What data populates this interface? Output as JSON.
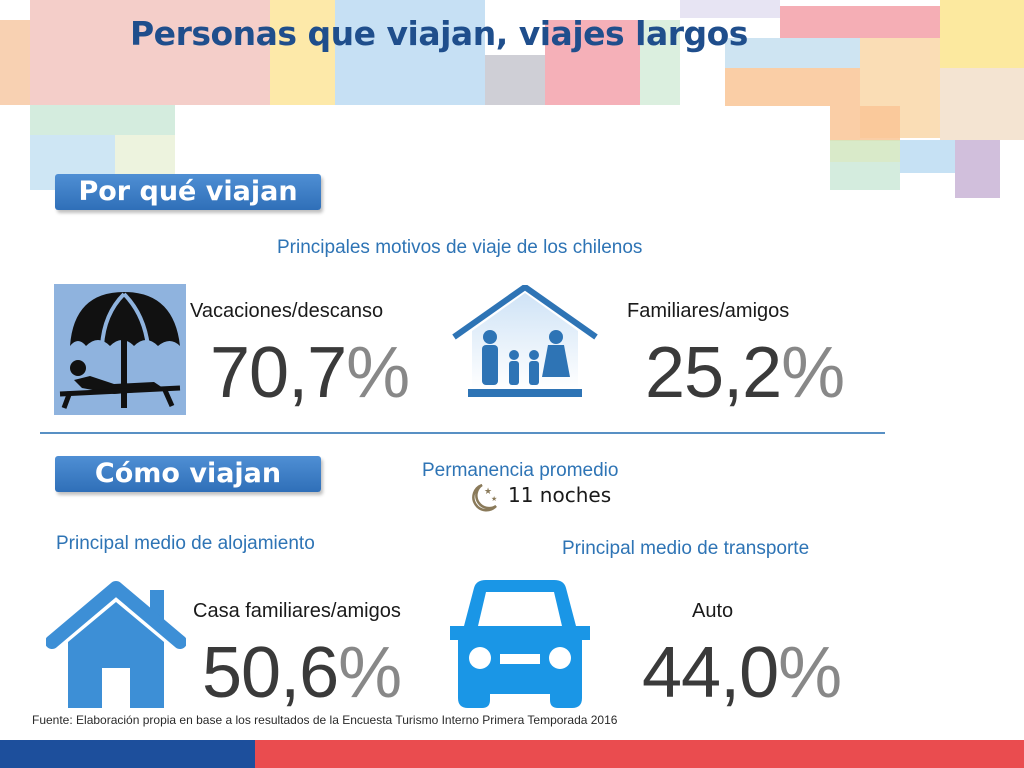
{
  "title": "Personas que viajan, viajes largos",
  "section_why": {
    "tab_label": "Por qué viajan",
    "subtitle": "Principales motivos de viaje de los chilenos",
    "items": [
      {
        "label": "Vacaciones/descanso",
        "value": "70,7",
        "unit": "%",
        "icon": "beach-umbrella-icon"
      },
      {
        "label": "Familiares/amigos",
        "value": "25,2",
        "unit": "%",
        "icon": "family-house-icon"
      }
    ]
  },
  "section_how": {
    "tab_label": "Cómo viajan",
    "stay": {
      "label": "Permanencia promedio",
      "value": "11 noches",
      "icon": "moon-stars-icon"
    },
    "lodging": {
      "title": "Principal medio de alojamiento",
      "label": "Casa familiares/amigos",
      "value": "50,6",
      "unit": "%",
      "icon": "house-icon"
    },
    "transport": {
      "title": "Principal medio de transporte",
      "label": "Auto",
      "value": "44,0",
      "unit": "%",
      "icon": "car-icon"
    }
  },
  "footer": "Fuente: Elaboración propia en base a los resultados de la Encuesta Turismo Interno Primera Temporada 2016",
  "colors": {
    "accent_blue": "#2e74b5",
    "title_blue": "#1f4e8c",
    "footer_blue": "#1d4f9c",
    "footer_red": "#ea4c4f"
  }
}
